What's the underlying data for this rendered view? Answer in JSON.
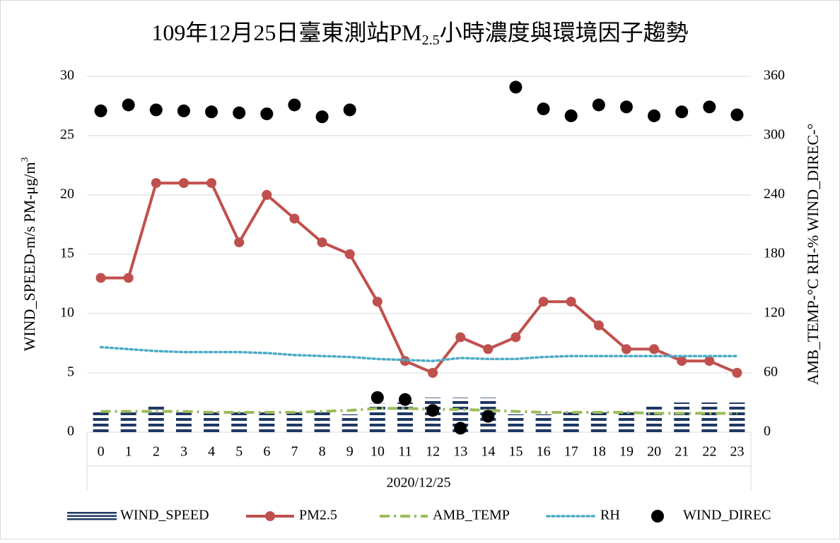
{
  "chart_data": {
    "type": "combo",
    "title": [
      "109年12月25日臺東測站PM",
      "2.5",
      "小時濃度與環境因子趨勢"
    ],
    "y_label": [
      "WIND_SPEED-m/s    PM-μg/m",
      "3"
    ],
    "y2_label": "AMB_TEMP-°C    RH-%    WIND_DIREC-°",
    "x_group_label": "2020/12/25",
    "categories": [
      "0",
      "1",
      "2",
      "3",
      "4",
      "5",
      "6",
      "7",
      "8",
      "9",
      "10",
      "11",
      "12",
      "13",
      "14",
      "15",
      "16",
      "17",
      "18",
      "19",
      "20",
      "21",
      "22",
      "23"
    ],
    "ylim": [
      0,
      30
    ],
    "yticks": [
      0,
      5,
      10,
      15,
      20,
      25,
      30
    ],
    "y2lim": [
      0,
      360
    ],
    "y2ticks": [
      0,
      60,
      120,
      180,
      240,
      300,
      360
    ],
    "grid": true,
    "legend": "bottom",
    "series": [
      {
        "name": "WIND_SPEED",
        "type": "bar",
        "color": "#1f3864",
        "values": [
          1.9,
          1.9,
          2.2,
          1.9,
          1.9,
          1.9,
          1.9,
          1.9,
          1.9,
          1.5,
          2.4,
          2.5,
          2.9,
          2.9,
          2.9,
          1.5,
          1.5,
          1.9,
          1.9,
          1.9,
          2.2,
          2.5,
          2.5,
          2.5
        ]
      },
      {
        "name": "PM2.5",
        "type": "line",
        "style": "solid",
        "marker": true,
        "color": "#c0504d",
        "values": [
          13,
          13,
          21,
          21,
          21,
          16,
          20,
          18,
          16,
          15,
          11,
          6,
          5,
          8,
          7,
          8,
          11,
          11,
          9,
          7,
          7,
          6,
          6,
          5
        ]
      },
      {
        "name": "AMB_TEMP",
        "type": "line",
        "style": "dash-dot",
        "axis": "y2",
        "color": "#9bbb59",
        "values": [
          21,
          21,
          21,
          21,
          20,
          20,
          20,
          20,
          21,
          22,
          24,
          24,
          23,
          23,
          22,
          21,
          20,
          20,
          20,
          20,
          19,
          19,
          19,
          19
        ]
      },
      {
        "name": "RH",
        "type": "line",
        "style": "dot",
        "axis": "y2",
        "color": "#4bacc6",
        "values": [
          86,
          84,
          82,
          81,
          81,
          81,
          80,
          78,
          77,
          76,
          74,
          73,
          72,
          75,
          74,
          74,
          76,
          77,
          77,
          77,
          77,
          77,
          77,
          77
        ]
      },
      {
        "name": "WIND_DIREC",
        "type": "scatter",
        "axis": "y2",
        "color": "#000000",
        "values": [
          325,
          331,
          326,
          325,
          324,
          323,
          322,
          331,
          319,
          326,
          35,
          33,
          22,
          4,
          16,
          349,
          327,
          320,
          331,
          329,
          320,
          324,
          329,
          321
        ]
      }
    ]
  }
}
